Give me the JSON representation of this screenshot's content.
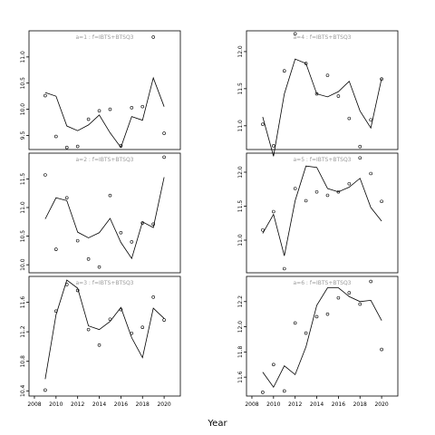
{
  "x_axis_label": "Year",
  "chart_data": [
    {
      "type": "line",
      "title": "a=1 : f=IBTS+BTSQ3",
      "xlim": [
        2007.5,
        2021.5
      ],
      "ylim": [
        9.23,
        11.5
      ],
      "yticks": [
        9.5,
        10.0,
        10.5,
        11.0
      ],
      "ytick_labels": [
        "9.5",
        "10.0",
        "10.5",
        "11.0"
      ],
      "xticks": [],
      "xtick_labels": [],
      "x": [
        2009,
        2010,
        2011,
        2012,
        2013,
        2014,
        2015,
        2016,
        2017,
        2018,
        2019,
        2020
      ],
      "series": [
        {
          "kind": "line",
          "values": [
            10.32,
            10.25,
            9.68,
            9.59,
            9.7,
            9.89,
            9.55,
            9.27,
            9.86,
            9.79,
            10.6,
            10.05
          ]
        },
        {
          "kind": "points",
          "values": [
            10.26,
            9.48,
            9.27,
            9.29,
            9.81,
            9.97,
            10.0,
            9.3,
            10.03,
            10.05,
            11.38,
            9.54
          ]
        }
      ]
    },
    {
      "type": "line",
      "title": "a=4 : f=IBTS+BTSQ3",
      "xlim": [
        2007.5,
        2021.5
      ],
      "ylim": [
        10.68,
        12.28
      ],
      "yticks": [
        11.0,
        11.5,
        12.0
      ],
      "ytick_labels": [
        "11.0",
        "11.5",
        "12.0"
      ],
      "xticks": [],
      "xtick_labels": [],
      "x": [
        2009,
        2010,
        2011,
        2012,
        2013,
        2014,
        2015,
        2016,
        2017,
        2018,
        2019,
        2020
      ],
      "series": [
        {
          "kind": "line",
          "values": [
            11.12,
            10.59,
            11.43,
            11.9,
            11.84,
            11.43,
            11.39,
            11.46,
            11.6,
            11.2,
            10.97,
            11.64
          ]
        },
        {
          "kind": "points",
          "values": [
            11.02,
            10.73,
            11.74,
            12.24,
            11.84,
            11.43,
            11.68,
            11.4,
            11.1,
            10.72,
            11.08,
            11.63
          ]
        }
      ]
    },
    {
      "type": "line",
      "title": "a=2 : f=IBTS+BTSQ3",
      "xlim": [
        2007.5,
        2021.5
      ],
      "ylim": [
        9.86,
        11.95
      ],
      "yticks": [
        10.0,
        10.5,
        11.0,
        11.5
      ],
      "ytick_labels": [
        "10.0",
        "10.5",
        "11.0",
        "11.5"
      ],
      "xticks": [],
      "xtick_labels": [],
      "x": [
        2009,
        2010,
        2011,
        2012,
        2013,
        2014,
        2015,
        2016,
        2017,
        2018,
        2019,
        2020
      ],
      "series": [
        {
          "kind": "line",
          "values": [
            10.8,
            11.17,
            11.12,
            10.57,
            10.47,
            10.56,
            10.81,
            10.39,
            10.11,
            10.75,
            10.65,
            11.53
          ]
        },
        {
          "kind": "points",
          "values": [
            11.57,
            10.27,
            11.17,
            10.42,
            10.1,
            9.96,
            11.21,
            10.56,
            10.4,
            10.73,
            10.71,
            11.88
          ]
        }
      ]
    },
    {
      "type": "line",
      "title": "a=5 : f=IBTS+BTSQ3",
      "xlim": [
        2007.5,
        2021.5
      ],
      "ylim": [
        10.52,
        12.28
      ],
      "yticks": [
        11.0,
        11.5,
        12.0
      ],
      "ytick_labels": [
        "11.0",
        "11.5",
        "12.0"
      ],
      "xticks": [],
      "xtick_labels": [],
      "x": [
        2009,
        2010,
        2011,
        2012,
        2013,
        2014,
        2015,
        2016,
        2017,
        2018,
        2019,
        2020
      ],
      "series": [
        {
          "kind": "line",
          "values": [
            11.1,
            11.38,
            10.77,
            11.58,
            12.09,
            12.07,
            11.76,
            11.71,
            11.78,
            11.91,
            11.48,
            11.28
          ]
        },
        {
          "kind": "points",
          "values": [
            11.15,
            11.42,
            10.58,
            11.76,
            11.58,
            11.71,
            11.66,
            11.71,
            11.83,
            12.21,
            11.98,
            11.57
          ]
        }
      ]
    },
    {
      "type": "line",
      "title": "a=3 : f=IBTS+BTSQ3",
      "xlim": [
        2007.5,
        2021.5
      ],
      "ylim": [
        10.33,
        11.95
      ],
      "yticks": [
        10.4,
        10.8,
        11.2,
        11.6
      ],
      "ytick_labels": [
        "10.4",
        "10.8",
        "11.2",
        "11.6"
      ],
      "xticks": [
        2008,
        2010,
        2012,
        2014,
        2016,
        2018,
        2020
      ],
      "xtick_labels": [
        "2008",
        "2010",
        "2012",
        "2014",
        "2016",
        "2018",
        "2020"
      ],
      "x": [
        2009,
        2010,
        2011,
        2012,
        2013,
        2014,
        2015,
        2016,
        2017,
        2018,
        2019,
        2020
      ],
      "series": [
        {
          "kind": "line",
          "values": [
            10.56,
            11.43,
            11.9,
            11.79,
            11.28,
            11.23,
            11.34,
            11.53,
            11.12,
            10.85,
            11.52,
            11.38
          ]
        },
        {
          "kind": "points",
          "values": [
            10.41,
            11.48,
            11.84,
            11.76,
            11.23,
            11.02,
            11.37,
            11.5,
            11.18,
            11.26,
            11.67,
            11.36
          ]
        }
      ]
    },
    {
      "type": "line",
      "title": "a=6 : f=IBTS+BTSQ3",
      "xlim": [
        2007.5,
        2021.5
      ],
      "ylim": [
        11.45,
        12.4
      ],
      "yticks": [
        11.6,
        11.8,
        12.0,
        12.2
      ],
      "ytick_labels": [
        "11.6",
        "11.8",
        "12.0",
        "12.2"
      ],
      "xticks": [
        2008,
        2010,
        2012,
        2014,
        2016,
        2018,
        2020
      ],
      "xtick_labels": [
        "2008",
        "2010",
        "2012",
        "2014",
        "2016",
        "2018",
        "2020"
      ],
      "x": [
        2009,
        2010,
        2011,
        2012,
        2013,
        2014,
        2015,
        2016,
        2017,
        2018,
        2019,
        2020
      ],
      "series": [
        {
          "kind": "line",
          "values": [
            11.64,
            11.52,
            11.69,
            11.62,
            11.84,
            12.17,
            12.31,
            12.31,
            12.24,
            12.2,
            12.21,
            12.05
          ]
        },
        {
          "kind": "points",
          "values": [
            11.48,
            11.7,
            11.49,
            12.03,
            11.95,
            12.08,
            12.1,
            12.23,
            12.27,
            12.18,
            12.36,
            11.82
          ]
        }
      ]
    }
  ]
}
